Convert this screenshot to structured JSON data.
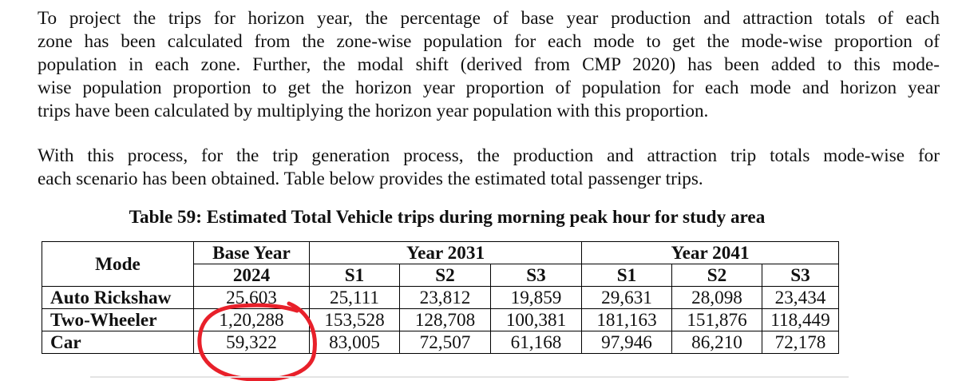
{
  "paragraphs": [
    {
      "lines": [
        "To project the trips for horizon year, the percentage of base year production and attraction totals of each",
        "zone has been calculated from the zone-wise population for each mode to get the mode-wise proportion of",
        "population in each zone. Further, the modal shift (derived from CMP 2020) has been added to this mode-",
        "wise population proportion to get the horizon year proportion of population for each mode and horizon year",
        "trips have been calculated by multiplying the horizon year population with this proportion."
      ]
    },
    {
      "lines": [
        "With this process, for the trip generation process, the production and attraction trip totals mode-wise for",
        "each scenario has been obtained. Table below provides the estimated total passenger trips."
      ]
    }
  ],
  "table": {
    "caption": "Table 59: Estimated Total Vehicle trips during morning peak hour for study area",
    "header": {
      "mode": "Mode",
      "base_year": "Base Year",
      "base_year_value": "2024",
      "year_2031": "Year 2031",
      "year_2041": "Year 2041",
      "scenarios_2031": [
        "S1",
        "S2",
        "S3"
      ],
      "scenarios_2041": [
        "S1",
        "S2",
        "S3"
      ]
    },
    "rows": [
      {
        "mode": "Auto Rickshaw",
        "values": [
          "25,603",
          "25,111",
          "23,812",
          "19,859",
          "29,631",
          "28,098",
          "23,434"
        ]
      },
      {
        "mode": "Two-Wheeler",
        "values": [
          "1,20,288",
          "153,528",
          "128,708",
          "100,381",
          "181,163",
          "151,876",
          "118,449"
        ]
      },
      {
        "mode": "Car",
        "values": [
          "59,322",
          "83,005",
          "72,507",
          "61,168",
          "97,946",
          "86,210",
          "72,178"
        ]
      }
    ]
  },
  "annotation": {
    "color": "#e8202a"
  }
}
